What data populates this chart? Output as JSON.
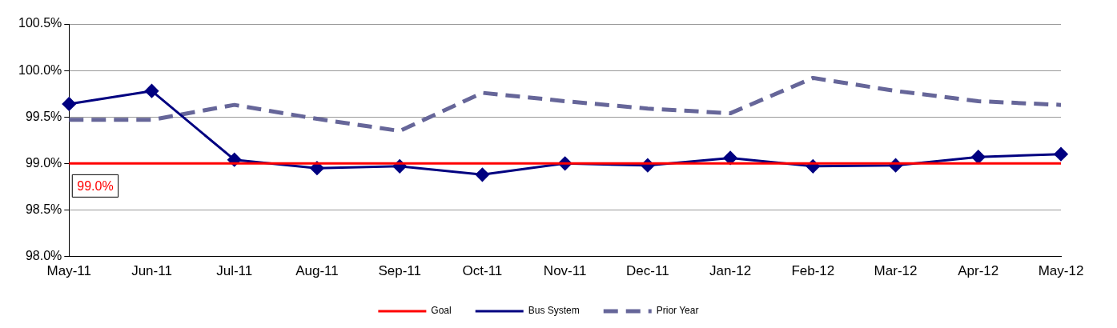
{
  "chart_data": {
    "type": "line",
    "categories": [
      "May-11",
      "Jun-11",
      "Jul-11",
      "Aug-11",
      "Sep-11",
      "Oct-11",
      "Nov-11",
      "Dec-11",
      "Jan-12",
      "Feb-12",
      "Mar-12",
      "Apr-12",
      "May-12"
    ],
    "series": [
      {
        "name": "Goal",
        "color": "#ff0000",
        "marker": "none",
        "line_style": "solid",
        "values": [
          99.0,
          99.0,
          99.0,
          99.0,
          99.0,
          99.0,
          99.0,
          99.0,
          99.0,
          99.0,
          99.0,
          99.0,
          99.0
        ]
      },
      {
        "name": "Bus System",
        "color": "#000080",
        "marker": "diamond",
        "line_style": "solid",
        "values": [
          99.64,
          99.78,
          99.04,
          98.95,
          98.97,
          98.88,
          99.0,
          98.98,
          99.06,
          98.97,
          98.98,
          99.07,
          99.1
        ]
      },
      {
        "name": "Prior Year",
        "color": "#666699",
        "marker": "none",
        "line_style": "dashed",
        "values": [
          99.47,
          99.47,
          99.63,
          99.48,
          99.35,
          99.76,
          99.67,
          99.59,
          99.54,
          99.92,
          99.78,
          99.67,
          99.63
        ]
      }
    ],
    "ylim": [
      98.0,
      100.5
    ],
    "yticks": [
      {
        "value": 98.0,
        "label": "98.0%"
      },
      {
        "value": 98.5,
        "label": "98.5%"
      },
      {
        "value": 99.0,
        "label": "99.0%"
      },
      {
        "value": 99.5,
        "label": "99.5%"
      },
      {
        "value": 100.0,
        "label": "100.0%"
      },
      {
        "value": 100.5,
        "label": "100.5%"
      }
    ],
    "grid": "y",
    "legend": "bottom",
    "annotations": [
      {
        "text": "99.0%",
        "x": "May-11",
        "y": 99.0
      }
    ]
  }
}
